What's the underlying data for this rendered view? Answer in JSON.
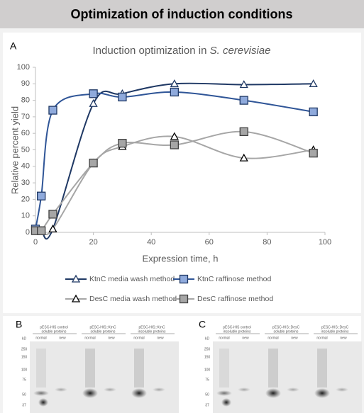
{
  "header": {
    "title": "Optimization of induction conditions"
  },
  "panel_labels": [
    "A",
    "B",
    "C"
  ],
  "chart_data": {
    "type": "line",
    "title": [
      "Induction optimization in ",
      "S. cerevisiae"
    ],
    "x_label": "Expression time, h",
    "y_label": "Relative percent yield",
    "x": [
      0,
      2,
      6,
      20,
      30,
      48,
      72,
      96
    ],
    "series": [
      {
        "name": "KtnC media wash method",
        "color": "#1f3864",
        "marker": "triangle",
        "marker_fill": "#ffffff",
        "values": [
          2,
          1,
          2,
          78,
          84,
          90,
          89.5,
          90
        ]
      },
      {
        "name": "KtnC raffinose method",
        "color": "#2f5597",
        "marker": "square",
        "marker_fill": "#8faadc",
        "values": [
          2,
          22,
          74,
          84,
          82,
          85,
          80,
          73
        ]
      },
      {
        "name": "DesC media wash method",
        "color": "#a6a6a6",
        "marker": "triangle",
        "marker_fill": "#ffffff",
        "values": [
          1,
          1,
          2,
          42,
          52,
          58,
          45,
          50
        ]
      },
      {
        "name": "DesC raffinose method",
        "color": "#a6a6a6",
        "marker": "square",
        "marker_fill": "#a6a6a6",
        "values": [
          1,
          1,
          11,
          42,
          54,
          53,
          61,
          48
        ]
      }
    ],
    "xlim": [
      0,
      100
    ],
    "xticks": [
      0,
      20,
      40,
      60,
      80,
      100
    ],
    "ylim": [
      0,
      100
    ],
    "yticks": [
      0,
      10,
      20,
      30,
      40,
      50,
      60,
      70,
      80,
      90,
      100
    ],
    "smooth": true,
    "legend": "bottom"
  },
  "blots": [
    {
      "kd_unit": "kD",
      "kd_markers": [
        "250",
        "150",
        "100",
        "75",
        "50",
        "37"
      ],
      "groups": [
        {
          "title": [
            "pESC-HIS control",
            "soluble proteins"
          ],
          "lanes": [
            "normal",
            "new"
          ]
        },
        {
          "title": [
            "pESC-HIS::KtnC",
            "soluble proteins"
          ],
          "lanes": [
            "normal",
            "new"
          ]
        },
        {
          "title": [
            "pESC-HIS::KtnC",
            "insoluble proteins"
          ],
          "lanes": [
            "normal",
            "new"
          ]
        }
      ]
    },
    {
      "kd_unit": "kD",
      "kd_markers": [
        "250",
        "150",
        "100",
        "75",
        "50",
        "37"
      ],
      "groups": [
        {
          "title": [
            "pESC-HIS control",
            "insoluble proteins"
          ],
          "lanes": [
            "normal",
            "new"
          ]
        },
        {
          "title": [
            "pESC-HIS::DesC",
            "soluble proteins"
          ],
          "lanes": [
            "normal",
            "new"
          ]
        },
        {
          "title": [
            "pESC-HIS::DesC",
            "insoluble proteins"
          ],
          "lanes": [
            "normal",
            "new"
          ]
        }
      ]
    }
  ]
}
